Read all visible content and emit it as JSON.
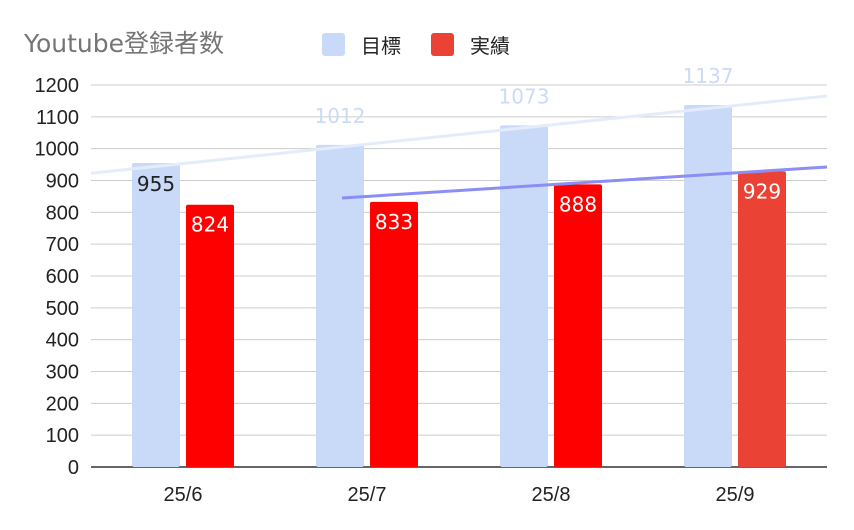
{
  "chart_data": {
    "type": "bar",
    "title": "Youtube登録者数",
    "categories": [
      "25/6",
      "25/7",
      "25/8",
      "25/9"
    ],
    "series": [
      {
        "name": "目標",
        "values": [
          955,
          1012,
          1073,
          1137
        ],
        "color": "#c8daf8"
      },
      {
        "name": "実績",
        "values": [
          824,
          833,
          888,
          929
        ],
        "colors": [
          "#ff0000",
          "#ff0000",
          "#ff0000",
          "#ea4335"
        ],
        "color": "#ea4335"
      }
    ],
    "ylim": [
      0,
      1200
    ],
    "yticks": [
      0,
      100,
      200,
      300,
      400,
      500,
      600,
      700,
      800,
      900,
      1000,
      1100,
      1200
    ],
    "grid": true,
    "legend_position": "top",
    "trendlines": [
      {
        "series": "目標",
        "color": "#e4ecfb"
      },
      {
        "series": "実績",
        "color": "#8a8ef5"
      }
    ]
  }
}
